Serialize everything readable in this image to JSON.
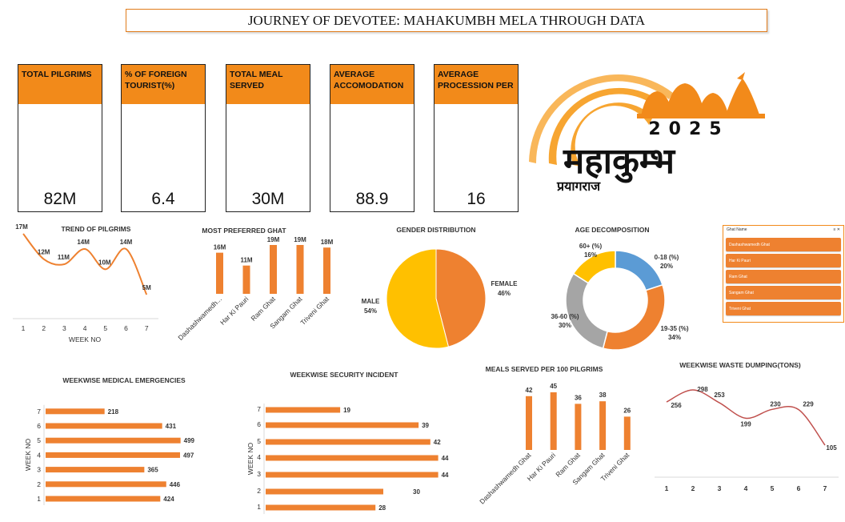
{
  "title": "JOURNEY OF DEVOTEE: MAHAKUMBH MELA THROUGH DATA",
  "kpis": [
    {
      "label": "TOTAL PILGRIMS",
      "value": "82M"
    },
    {
      "label": "% OF FOREIGN TOURIST(%)",
      "value": "6.4"
    },
    {
      "label": "TOTAL MEAL SERVED",
      "value": "30M"
    },
    {
      "label": "AVERAGE ACCOMODATION",
      "value": "88.9"
    },
    {
      "label": "AVERAGE PROCESSION PER",
      "value": "16"
    }
  ],
  "logo": {
    "year": "2025",
    "hindi_title": "महाकुम्भ",
    "hindi_subtitle": "प्रयागराज"
  },
  "slicer": {
    "header": "Ghat Name",
    "items": [
      "Dashashwamedh Ghat",
      "Har Ki Pauri",
      "Ram Ghat",
      "Sangam Ghat",
      "Triveni Ghat"
    ]
  },
  "chart_data": [
    {
      "type": "line",
      "title": "TREND OF PILGRIMS",
      "xlabel": "WEEK NO",
      "x": [
        1,
        2,
        3,
        4,
        5,
        6,
        7
      ],
      "values": [
        17,
        12,
        11,
        14,
        10,
        14,
        5
      ],
      "data_labels": [
        "17M",
        "12M",
        "11M",
        "14M",
        "10M",
        "14M",
        "5M"
      ]
    },
    {
      "type": "bar",
      "title": "MOST PREFERRED GHAT",
      "categories": [
        "Dashashwamedh...",
        "Har Ki Pauri",
        "Ram Ghat",
        "Sangam Ghat",
        "Triveni Ghat"
      ],
      "values": [
        16,
        11,
        19,
        19,
        18
      ],
      "data_labels": [
        "16M",
        "11M",
        "19M",
        "19M",
        "18M"
      ]
    },
    {
      "type": "pie",
      "title": "GENDER DISTRIBUTION",
      "labels": [
        "FEMALE",
        "MALE"
      ],
      "values": [
        46,
        54
      ],
      "colors": [
        "#ee8130",
        "#ffc000"
      ]
    },
    {
      "type": "pie",
      "title": "AGE DECOMPOSITION",
      "labels": [
        "0-18 (%)",
        "19-35 (%)",
        "36-60 (%)",
        "60+ (%)"
      ],
      "values": [
        20,
        34,
        30,
        16
      ],
      "colors": [
        "#5b9bd5",
        "#ee8130",
        "#a5a5a5",
        "#ffc000"
      ]
    },
    {
      "type": "bar",
      "title": "WEEKWISE MEDICAL EMERGENCIES",
      "ylabel": "WEEK NO",
      "categories": [
        "1",
        "2",
        "3",
        "4",
        "5",
        "6",
        "7"
      ],
      "values": [
        424,
        446,
        365,
        497,
        499,
        431,
        218
      ]
    },
    {
      "type": "bar",
      "title": "WEEKWISE SECURITY INCIDENT",
      "ylabel": "WEEK NO",
      "categories": [
        "1",
        "2",
        "3",
        "4",
        "5",
        "6",
        "7"
      ],
      "values": [
        28,
        30,
        44,
        44,
        42,
        39,
        19
      ]
    },
    {
      "type": "bar",
      "title": "MEALS SERVED PER 100 PILGRIMS",
      "categories": [
        "Dashashwamedh Ghat",
        "Har Ki Pauri",
        "Ram Ghat",
        "Sangam Ghat",
        "Triveni Ghat"
      ],
      "values": [
        42,
        45,
        36,
        38,
        26
      ]
    },
    {
      "type": "line",
      "title": "WEEKWISE WASTE DUMPING(TONS)",
      "x": [
        1,
        2,
        3,
        4,
        5,
        6,
        7
      ],
      "values": [
        256,
        298,
        253,
        199,
        230,
        229,
        105
      ]
    }
  ],
  "colors": {
    "accent": "#f28a1a",
    "bar": "#ee8130"
  }
}
